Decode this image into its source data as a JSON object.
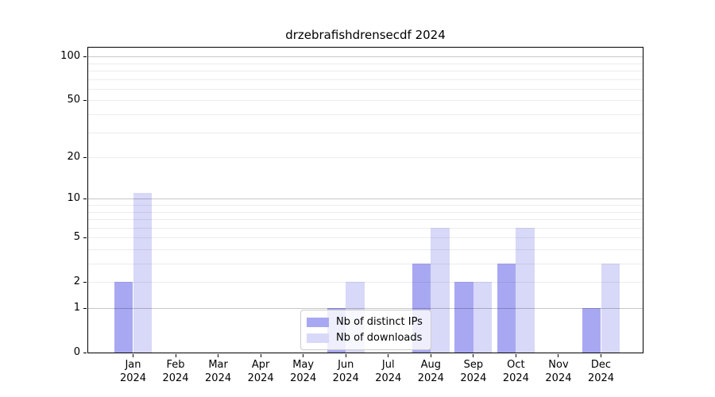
{
  "chart_data": {
    "type": "bar",
    "title": "drzebrafishdrensecdf 2024",
    "categories": [
      "Jan",
      "Feb",
      "Mar",
      "Apr",
      "May",
      "Jun",
      "Jul",
      "Aug",
      "Sep",
      "Oct",
      "Nov",
      "Dec"
    ],
    "year": "2024",
    "series": [
      {
        "name": "Nb of distinct IPs",
        "color": "#a8a8f2",
        "values": [
          2,
          0,
          0,
          0,
          0,
          1,
          0,
          3,
          2,
          3,
          0,
          1
        ]
      },
      {
        "name": "Nb of downloads",
        "color": "#d8d8f8",
        "values": [
          11,
          0,
          0,
          0,
          0,
          2,
          0,
          6,
          2,
          6,
          0,
          3
        ]
      }
    ],
    "yscale": "log1p",
    "ylim": [
      0,
      115
    ],
    "yticks": [
      0,
      1,
      2,
      5,
      10,
      20,
      50,
      100
    ],
    "major_gridlines": [
      1,
      10,
      100
    ],
    "minor_gridlines": [
      2,
      3,
      4,
      5,
      6,
      7,
      8,
      9,
      20,
      30,
      40,
      50,
      60,
      70,
      80,
      90
    ],
    "grid": true,
    "legend_position": "lower center",
    "xlabel": "",
    "ylabel": ""
  }
}
